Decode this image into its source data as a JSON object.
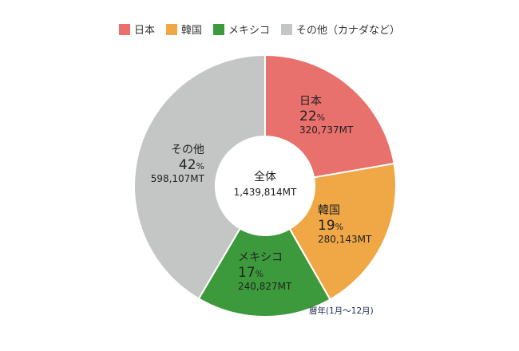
{
  "chart_data": {
    "type": "pie",
    "legend_position": "top-center",
    "categories": [
      "日本",
      "韓国",
      "メキシコ",
      "その他（カナダなど）"
    ],
    "series": [
      {
        "values": [
          320737,
          280143,
          240827,
          598107
        ],
        "percent_labels": [
          "22",
          "19",
          "17",
          "42"
        ],
        "value_labels": [
          "320,737MT",
          "280,143MT",
          "240,827MT",
          "598,107MT"
        ],
        "slice_labels": [
          "日本",
          "韓国",
          "メキシコ",
          "その他"
        ],
        "colors": [
          "#e8706d",
          "#f0a746",
          "#3d9a3c",
          "#c4c5c5"
        ]
      }
    ],
    "percent_suffix": "%",
    "center": {
      "title": "全体",
      "value": "1,439,814MT"
    },
    "note": "暦年(1月～12月)"
  }
}
